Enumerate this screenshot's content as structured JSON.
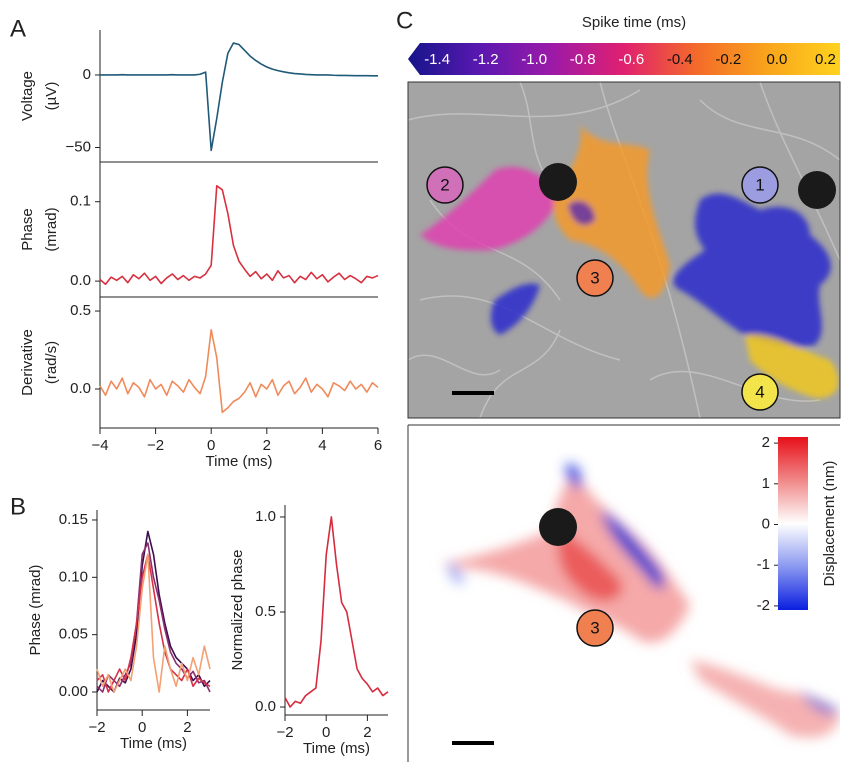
{
  "panels": [
    "A",
    "B",
    "C"
  ],
  "cells": [
    "2",
    "1",
    "3",
    "4",
    "3"
  ],
  "chart_data": [
    {
      "type": "line",
      "ylabel": [
        "Voltage",
        "(µV)"
      ],
      "color": "#1f5a78",
      "x": [
        -4,
        -3.8,
        -3.6,
        -3.4,
        -3.2,
        -3,
        -2.8,
        -2.6,
        -2.4,
        -2.2,
        -2,
        -1.8,
        -1.6,
        -1.4,
        -1.2,
        -1,
        -0.8,
        -0.6,
        -0.4,
        -0.2,
        0,
        0.2,
        0.4,
        0.6,
        0.8,
        1,
        1.2,
        1.4,
        1.6,
        1.8,
        2,
        2.2,
        2.4,
        2.6,
        2.8,
        3,
        3.2,
        3.4,
        3.6,
        3.8,
        4,
        4.2,
        4.4,
        4.6,
        4.8,
        5,
        5.2,
        5.4,
        5.6,
        5.8,
        6
      ],
      "values": [
        0,
        0,
        0,
        0,
        0.2,
        0,
        0,
        0,
        0,
        0,
        0,
        0,
        0,
        0.2,
        0,
        0,
        0,
        0,
        0.5,
        2,
        -52,
        -30,
        -5,
        15,
        22,
        21,
        17,
        13,
        10,
        7.5,
        5.5,
        4,
        3,
        2.2,
        1.5,
        1,
        0.7,
        0.4,
        0.2,
        0,
        0,
        0,
        -0.2,
        -0.3,
        -0.3,
        -0.4,
        -0.5,
        -0.5,
        -0.5,
        -0.6,
        -0.6
      ],
      "xlim": [
        -4,
        6
      ],
      "ylim": [
        -60,
        31
      ],
      "yticks": [
        {
          "value": -50,
          "label": "−50"
        },
        0
      ]
    },
    {
      "type": "line",
      "ylabel": [
        "Phase",
        "(mrad)"
      ],
      "color": "#d7303f",
      "x": [
        -4,
        -3.8,
        -3.6,
        -3.4,
        -3.2,
        -3,
        -2.8,
        -2.6,
        -2.4,
        -2.2,
        -2,
        -1.8,
        -1.6,
        -1.4,
        -1.2,
        -1,
        -0.8,
        -0.6,
        -0.4,
        -0.2,
        0,
        0.2,
        0.4,
        0.6,
        0.8,
        1,
        1.2,
        1.4,
        1.6,
        1.8,
        2,
        2.2,
        2.4,
        2.6,
        2.8,
        3,
        3.2,
        3.4,
        3.6,
        3.8,
        4,
        4.2,
        4.4,
        4.6,
        4.8,
        5,
        5.2,
        5.4,
        5.6,
        5.8,
        6
      ],
      "values": [
        0.002,
        -0.004,
        0.005,
        0.001,
        0.006,
        -0.002,
        0.008,
        0.003,
        0.01,
        0.001,
        0.006,
        -0.003,
        0.004,
        0.009,
        0.002,
        0.007,
        0.001,
        0.006,
        0.004,
        0.009,
        0.02,
        0.12,
        0.115,
        0.085,
        0.045,
        0.025,
        0.015,
        0.006,
        0.012,
        0.003,
        0.009,
        0.001,
        0.013,
        0.004,
        0.007,
        -0.002,
        0.006,
        0.002,
        0.011,
        0.003,
        0.008,
        -0.001,
        0.005,
        0.01,
        0.002,
        0.007,
        0.003,
        -0.002,
        0.006,
        0.004,
        0.007
      ],
      "xlim": [
        -4,
        6
      ],
      "ylim": [
        -0.02,
        0.15
      ],
      "yticks": [
        {
          "value": 0,
          "label": "0.0"
        },
        0.1
      ]
    },
    {
      "type": "line",
      "ylabel": [
        "Derivative",
        "(rad/s)"
      ],
      "xlabel": "Time (ms)",
      "color": "#f08a5a",
      "x": [
        -4,
        -3.8,
        -3.6,
        -3.4,
        -3.2,
        -3,
        -2.8,
        -2.6,
        -2.4,
        -2.2,
        -2,
        -1.8,
        -1.6,
        -1.4,
        -1.2,
        -1,
        -0.8,
        -0.6,
        -0.4,
        -0.2,
        0,
        0.2,
        0.4,
        0.6,
        0.8,
        1,
        1.2,
        1.4,
        1.6,
        1.8,
        2,
        2.2,
        2.4,
        2.6,
        2.8,
        3,
        3.2,
        3.4,
        3.6,
        3.8,
        4,
        4.2,
        4.4,
        4.6,
        4.8,
        5,
        5.2,
        5.4,
        5.6,
        5.8,
        6
      ],
      "values": [
        0.02,
        -0.04,
        0.05,
        0.0,
        0.07,
        -0.03,
        0.04,
        0.01,
        -0.05,
        0.06,
        0.0,
        0.03,
        -0.04,
        0.05,
        0.02,
        -0.02,
        0.06,
        0.01,
        -0.03,
        0.08,
        0.38,
        0.2,
        -0.15,
        -0.12,
        -0.08,
        -0.06,
        -0.02,
        0.04,
        -0.05,
        0.03,
        0.0,
        0.06,
        -0.04,
        0.02,
        0.05,
        -0.03,
        0.01,
        0.07,
        -0.02,
        0.03,
        0.0,
        -0.05,
        0.04,
        0.02,
        -0.01,
        0.05,
        0.0,
        0.03,
        -0.02,
        0.04,
        0.01
      ],
      "xlim": [
        -4,
        6
      ],
      "ylim": [
        -0.25,
        0.59
      ],
      "xticks": [
        {
          "value": -4,
          "label": "−4"
        },
        {
          "value": -2,
          "label": "−2"
        },
        0,
        2,
        4,
        6
      ],
      "yticks": [
        {
          "value": 0,
          "label": "0.0"
        },
        0.5
      ]
    },
    {
      "type": "line",
      "ylabel": [
        "Phase (mrad)"
      ],
      "xlabel": "Time (ms)",
      "x": [
        -2,
        -1.75,
        -1.5,
        -1.25,
        -1,
        -0.75,
        -0.5,
        -0.25,
        0,
        0.25,
        0.5,
        0.75,
        1,
        1.25,
        1.5,
        1.75,
        2,
        2.25,
        2.5,
        2.75,
        3
      ],
      "series": [
        {
          "color": "#3d0e4f",
          "values": [
            0.0,
            0.01,
            0.005,
            0.0,
            0.012,
            0.008,
            0.02,
            0.05,
            0.11,
            0.14,
            0.12,
            0.085,
            0.06,
            0.04,
            0.03,
            0.025,
            0.02,
            0.01,
            0.015,
            0.005,
            0.01
          ]
        },
        {
          "color": "#8b2f6e",
          "values": [
            0.005,
            0.0,
            0.015,
            0.01,
            0.005,
            0.015,
            0.025,
            0.06,
            0.12,
            0.13,
            0.1,
            0.08,
            0.055,
            0.035,
            0.025,
            0.02,
            0.012,
            0.018,
            0.008,
            0.01,
            0.0
          ]
        },
        {
          "color": "#d7304a",
          "values": [
            0.01,
            0.015,
            0.0,
            0.01,
            0.02,
            0.01,
            0.03,
            0.06,
            0.1,
            0.12,
            0.09,
            0.06,
            0.035,
            0.02,
            0.015,
            0.01,
            0.02,
            0.005,
            0.012,
            0.008,
            0.005
          ]
        },
        {
          "color": "#f4a072",
          "values": [
            0.02,
            0.005,
            0.015,
            0.0,
            0.01,
            0.02,
            0.01,
            0.04,
            0.09,
            0.12,
            0.03,
            0.0,
            0.04,
            0.02,
            0.005,
            0.025,
            0.01,
            0.03,
            0.015,
            0.04,
            0.02
          ]
        }
      ],
      "xlim": [
        -2,
        3
      ],
      "ylim": [
        -0.0157,
        0.1587
      ],
      "xticks": [
        {
          "value": -2,
          "label": "−2"
        },
        0,
        2
      ],
      "yticks": [
        {
          "value": 0,
          "label": "0.00"
        },
        0.05,
        {
          "value": 0.1,
          "label": "0.10"
        },
        0.15
      ]
    },
    {
      "type": "line",
      "ylabel": [
        "Normalized phase"
      ],
      "xlabel": "Time (ms)",
      "color": "#d72b3e",
      "x": [
        -2,
        -1.75,
        -1.5,
        -1.25,
        -1,
        -0.75,
        -0.5,
        -0.25,
        0,
        0.25,
        0.5,
        0.75,
        1,
        1.25,
        1.5,
        1.75,
        2,
        2.25,
        2.5,
        2.75,
        3
      ],
      "values": [
        0.05,
        0.0,
        0.03,
        0.02,
        0.06,
        0.08,
        0.1,
        0.35,
        0.8,
        1.0,
        0.75,
        0.55,
        0.5,
        0.35,
        0.2,
        0.15,
        0.12,
        0.08,
        0.1,
        0.06,
        0.08
      ],
      "xlim": [
        -2,
        3
      ],
      "ylim": [
        -0.042,
        1.063
      ],
      "xticks": [
        {
          "value": -2,
          "label": "−2"
        },
        0,
        2
      ],
      "yticks": [
        {
          "value": 0,
          "label": "0.0"
        },
        0.5,
        {
          "value": 1,
          "label": "1.0"
        }
      ]
    },
    {
      "type": "colorbar",
      "title": "Spike time (ms)",
      "orientation": "horizontal",
      "colors": [
        "#15158a",
        "#5a18b0",
        "#9c1aa8",
        "#e0206f",
        "#f46a2a",
        "#f9a51c",
        "#ffd21e"
      ],
      "clim": [
        -1.52,
        0.26
      ],
      "ticks": [
        -1.4,
        -1.2,
        {
          "value": -1,
          "label": "-1.0"
        },
        -0.8,
        -0.6,
        -0.4,
        -0.2,
        {
          "value": 0,
          "label": "0.0"
        },
        0.2
      ]
    },
    {
      "type": "colorbar",
      "title": "Displacement (nm)",
      "orientation": "vertical",
      "colors": [
        "#0a1ee0",
        "#8a98f0",
        "#ffffff",
        "#f08888",
        "#e8101a"
      ],
      "clim": [
        -2.1,
        2.15
      ],
      "ticks": [
        2,
        1,
        0,
        -1,
        -2
      ]
    }
  ]
}
